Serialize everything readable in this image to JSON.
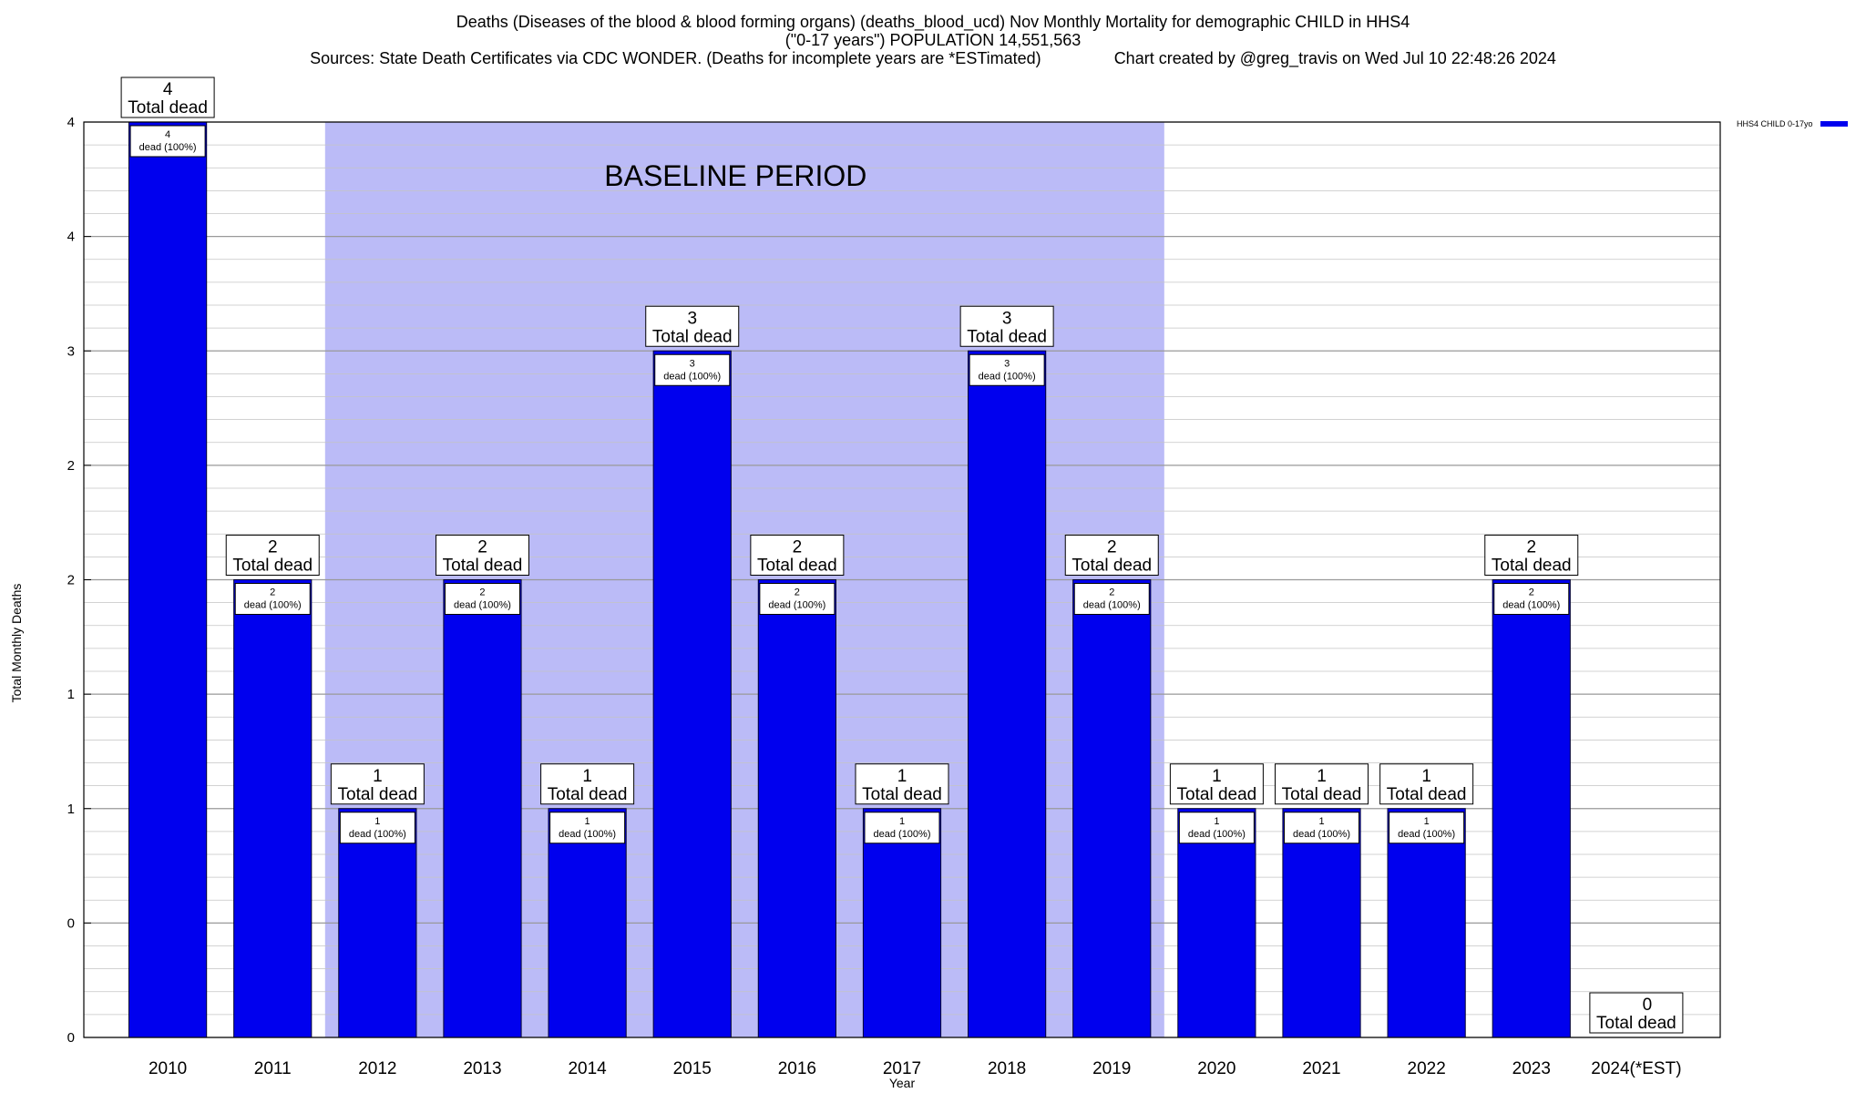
{
  "chart_data": {
    "type": "bar",
    "title": "Deaths (Diseases of the blood & blood forming organs) (deaths_blood_ucd) Nov Monthly Mortality for demographic CHILD in HHS4",
    "subtitle": "(\"0-17 years\") POPULATION 14,551,563",
    "sources": "Sources: State Death Certificates via CDC WONDER. (Deaths for incomplete years are *ESTimated)",
    "credit": "Chart created by @greg_travis on Wed Jul 10 22:48:26 2024",
    "xlabel": "Year",
    "ylabel": "Total Monthly Deaths",
    "ylim": [
      0,
      4
    ],
    "ytick_values": [
      0,
      0.5,
      1,
      1.5,
      2,
      2.5,
      3,
      3.5,
      4
    ],
    "ytick_labels": [
      "0",
      "0",
      "1",
      "1",
      "2",
      "2",
      "3",
      "4",
      "4"
    ],
    "categories": [
      "2010",
      "2011",
      "2012",
      "2013",
      "2014",
      "2015",
      "2016",
      "2017",
      "2018",
      "2019",
      "2020",
      "2021",
      "2022",
      "2023",
      "2024(*EST)"
    ],
    "series": [
      {
        "name": "HHS4 CHILD 0-17yo",
        "color": "#0000ee",
        "values": [
          4,
          2,
          1,
          2,
          1,
          3,
          2,
          1,
          3,
          2,
          1,
          1,
          1,
          2,
          0
        ]
      }
    ],
    "total_label_text": "Total dead",
    "inner_label_text": "dead (100%)",
    "baseline": {
      "label": "BASELINE PERIOD",
      "start": "2012",
      "end": "2019",
      "color": "#bbbbf7"
    },
    "grid": true,
    "legend_position": "top-right"
  }
}
